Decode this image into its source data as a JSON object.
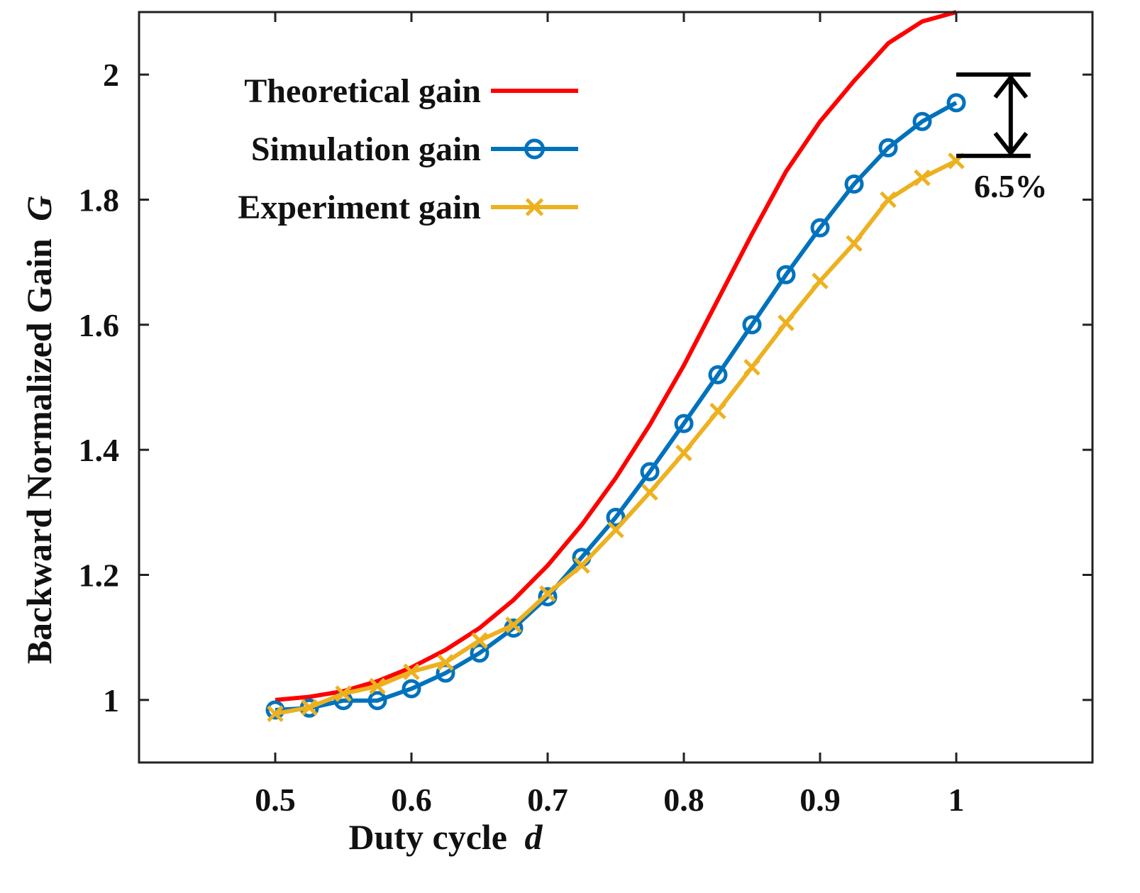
{
  "chart_data": {
    "type": "line",
    "title": "",
    "xlabel": "Duty cycle",
    "xlabel_var": "d",
    "ylabel": "Backward Normalized Gain",
    "ylabel_var": "G",
    "xlim": [
      0.4,
      1.1
    ],
    "ylim": [
      0.9,
      2.1
    ],
    "xticks": [
      0.5,
      0.6,
      0.7,
      0.8,
      0.9,
      1.0
    ],
    "xtick_labels": [
      "0.5",
      "0.6",
      "0.7",
      "0.8",
      "0.9",
      "1"
    ],
    "yticks": [
      1.0,
      1.2,
      1.4,
      1.6,
      1.8,
      2.0
    ],
    "ytick_labels": [
      "1",
      "1.2",
      "1.4",
      "1.6",
      "1.8",
      "2"
    ],
    "grid": false,
    "legend_position": "top-left",
    "series": [
      {
        "name": "Theoretical gain",
        "color": "#ff0000",
        "marker": "none",
        "x": [
          0.5,
          0.525,
          0.55,
          0.575,
          0.6,
          0.625,
          0.65,
          0.675,
          0.7,
          0.725,
          0.75,
          0.775,
          0.8,
          0.825,
          0.85,
          0.875,
          0.9,
          0.925,
          0.95,
          0.975,
          1.0
        ],
        "y": [
          1.0,
          1.005,
          1.014,
          1.03,
          1.052,
          1.08,
          1.115,
          1.16,
          1.215,
          1.28,
          1.355,
          1.44,
          1.535,
          1.64,
          1.745,
          1.845,
          1.925,
          1.99,
          2.05,
          2.085,
          2.1
        ]
      },
      {
        "name": "Simulation gain",
        "color": "#0072bd",
        "marker": "circle",
        "x": [
          0.5,
          0.525,
          0.55,
          0.575,
          0.6,
          0.625,
          0.65,
          0.675,
          0.7,
          0.725,
          0.75,
          0.775,
          0.8,
          0.825,
          0.85,
          0.875,
          0.9,
          0.925,
          0.95,
          0.975,
          1.0
        ],
        "y": [
          0.984,
          0.987,
          0.999,
          0.999,
          1.018,
          1.043,
          1.075,
          1.115,
          1.165,
          1.228,
          1.292,
          1.365,
          1.442,
          1.52,
          1.6,
          1.68,
          1.755,
          1.825,
          1.883,
          1.925,
          1.955
        ]
      },
      {
        "name": "Experiment gain",
        "color": "#edb120",
        "marker": "x",
        "x": [
          0.5,
          0.525,
          0.55,
          0.575,
          0.6,
          0.625,
          0.65,
          0.675,
          0.7,
          0.725,
          0.75,
          0.775,
          0.8,
          0.825,
          0.85,
          0.875,
          0.9,
          0.925,
          0.95,
          0.975,
          1.0
        ],
        "y": [
          0.978,
          0.988,
          1.01,
          1.022,
          1.045,
          1.06,
          1.095,
          1.12,
          1.17,
          1.215,
          1.272,
          1.332,
          1.395,
          1.462,
          1.532,
          1.603,
          1.67,
          1.73,
          1.8,
          1.835,
          1.862
        ]
      }
    ],
    "annotations": [
      {
        "text": "6.5%",
        "type": "double-arrow",
        "x": 1.04,
        "y_from": 2.0,
        "y_to": 1.87
      }
    ]
  }
}
